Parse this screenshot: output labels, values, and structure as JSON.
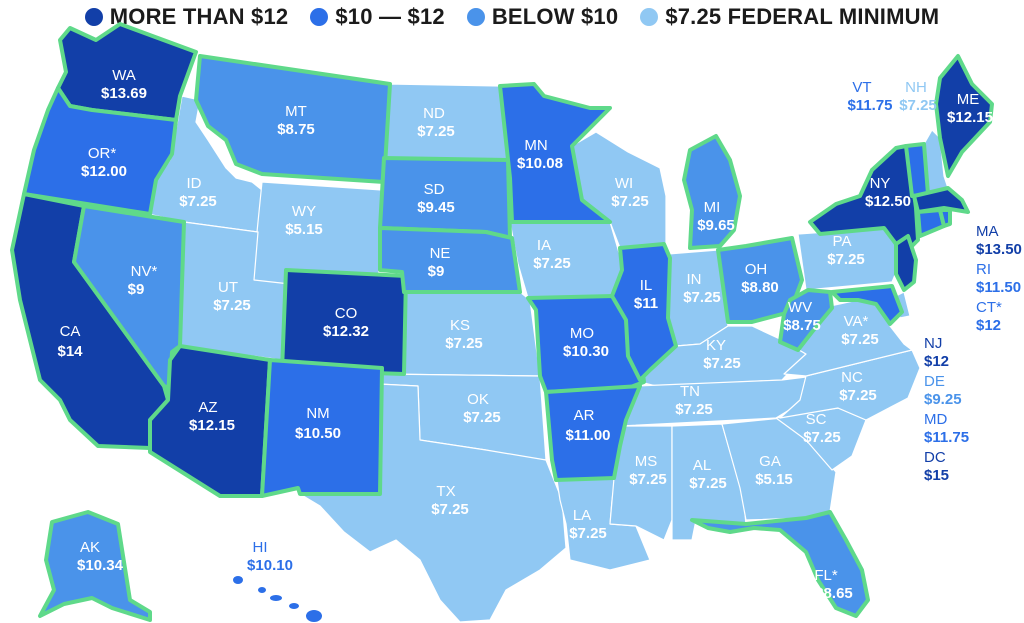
{
  "colors": {
    "more_than_12": "#123fa8",
    "ten_to_12": "#2c6fe8",
    "below_10": "#4a93ea",
    "federal_min": "#90c8f3",
    "state_outline_highlight": "#5fd98a"
  },
  "legend": [
    {
      "label": "MORE THAN $12",
      "color": "#123fa8"
    },
    {
      "label": "$10 — $12",
      "color": "#2c6fe8"
    },
    {
      "label": "BELOW $10",
      "color": "#4a93ea"
    },
    {
      "label": "$7.25 FEDERAL MINIMUM",
      "color": "#90c8f3"
    }
  ],
  "states": {
    "WA": {
      "abbr": "WA",
      "wage": "$13.69"
    },
    "OR": {
      "abbr": "OR*",
      "wage": "$12.00"
    },
    "CA": {
      "abbr": "CA",
      "wage": "$14"
    },
    "ID": {
      "abbr": "ID",
      "wage": "$7.25"
    },
    "NV": {
      "abbr": "NV*",
      "wage": "$9"
    },
    "MT": {
      "abbr": "MT",
      "wage": "$8.75"
    },
    "WY": {
      "abbr": "WY",
      "wage": "$5.15"
    },
    "UT": {
      "abbr": "UT",
      "wage": "$7.25"
    },
    "AZ": {
      "abbr": "AZ",
      "wage": "$12.15"
    },
    "CO": {
      "abbr": "CO",
      "wage": "$12.32"
    },
    "NM": {
      "abbr": "NM",
      "wage": "$10.50"
    },
    "ND": {
      "abbr": "ND",
      "wage": "$7.25"
    },
    "SD": {
      "abbr": "SD",
      "wage": "$9.45"
    },
    "NE": {
      "abbr": "NE",
      "wage": "$9"
    },
    "KS": {
      "abbr": "KS",
      "wage": "$7.25"
    },
    "OK": {
      "abbr": "OK",
      "wage": "$7.25"
    },
    "TX": {
      "abbr": "TX",
      "wage": "$7.25"
    },
    "MN": {
      "abbr": "MN",
      "wage": "$10.08"
    },
    "IA": {
      "abbr": "IA",
      "wage": "$7.25"
    },
    "MO": {
      "abbr": "MO",
      "wage": "$10.30"
    },
    "AR": {
      "abbr": "AR",
      "wage": "$11.00"
    },
    "LA": {
      "abbr": "LA",
      "wage": "$7.25"
    },
    "WI": {
      "abbr": "WI",
      "wage": "$7.25"
    },
    "IL": {
      "abbr": "IL",
      "wage": "$11"
    },
    "MI": {
      "abbr": "MI",
      "wage": "$9.65"
    },
    "IN": {
      "abbr": "IN",
      "wage": "$7.25"
    },
    "OH": {
      "abbr": "OH",
      "wage": "$8.80"
    },
    "KY": {
      "abbr": "KY",
      "wage": "$7.25"
    },
    "TN": {
      "abbr": "TN",
      "wage": "$7.25"
    },
    "MS": {
      "abbr": "MS",
      "wage": "$7.25"
    },
    "AL": {
      "abbr": "AL",
      "wage": "$7.25"
    },
    "GA": {
      "abbr": "GA",
      "wage": "$5.15"
    },
    "FL": {
      "abbr": "FL*",
      "wage": "$8.65"
    },
    "SC": {
      "abbr": "SC",
      "wage": "$7.25"
    },
    "NC": {
      "abbr": "NC",
      "wage": "$7.25"
    },
    "VA": {
      "abbr": "VA*",
      "wage": "$7.25"
    },
    "WV": {
      "abbr": "WV",
      "wage": "$8.75"
    },
    "PA": {
      "abbr": "PA",
      "wage": "$7.25"
    },
    "NY": {
      "abbr": "NY",
      "wage": "$12.50"
    },
    "ME": {
      "abbr": "ME",
      "wage": "$12.15"
    },
    "VT": {
      "abbr": "VT",
      "wage": "$11.75"
    },
    "NH": {
      "abbr": "NH",
      "wage": "$7.25"
    },
    "MA": {
      "abbr": "MA",
      "wage": "$13.50"
    },
    "RI": {
      "abbr": "RI",
      "wage": "$11.50"
    },
    "CT": {
      "abbr": "CT*",
      "wage": "$12"
    },
    "NJ": {
      "abbr": "NJ",
      "wage": "$12"
    },
    "DE": {
      "abbr": "DE",
      "wage": "$9.25"
    },
    "MD": {
      "abbr": "MD",
      "wage": "$11.75"
    },
    "DC": {
      "abbr": "DC",
      "wage": "$15"
    },
    "AK": {
      "abbr": "AK",
      "wage": "$10.34"
    },
    "HI": {
      "abbr": "HI",
      "wage": "$10.10"
    }
  }
}
